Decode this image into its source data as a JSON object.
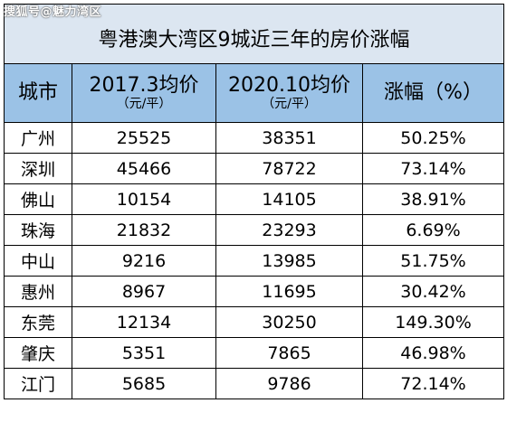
{
  "watermark": "搜狐号@魅力湾区",
  "title": "粤港澳大湾区9城近三年的房价涨幅",
  "headers": {
    "city": "城市",
    "price2017": "2017.3均价",
    "price2017_unit": "（元/平）",
    "price2020": "2020.10均价",
    "price2020_unit": "（元/平）",
    "growth": "涨幅（%）"
  },
  "rows": [
    {
      "city": "广州",
      "p2017": "25525",
      "p2020": "38351",
      "growth": "50.25%"
    },
    {
      "city": "深圳",
      "p2017": "45466",
      "p2020": "78722",
      "growth": "73.14%"
    },
    {
      "city": "佛山",
      "p2017": "10154",
      "p2020": "14105",
      "growth": "38.91%"
    },
    {
      "city": "珠海",
      "p2017": "21832",
      "p2020": "23293",
      "growth": "6.69%"
    },
    {
      "city": "中山",
      "p2017": "9216",
      "p2020": "13985",
      "growth": "51.75%"
    },
    {
      "city": "惠州",
      "p2017": "8967",
      "p2020": "11695",
      "growth": "30.42%"
    },
    {
      "city": "东莞",
      "p2017": "12134",
      "p2020": "30250",
      "growth": "149.30%"
    },
    {
      "city": "肇庆",
      "p2017": "5351",
      "p2020": "7865",
      "growth": "46.98%"
    },
    {
      "city": "江门",
      "p2017": "5685",
      "p2020": "9786",
      "growth": "72.14%"
    }
  ],
  "colors": {
    "title_bg": "#dce6f1",
    "header_bg": "#9bc2e6"
  }
}
